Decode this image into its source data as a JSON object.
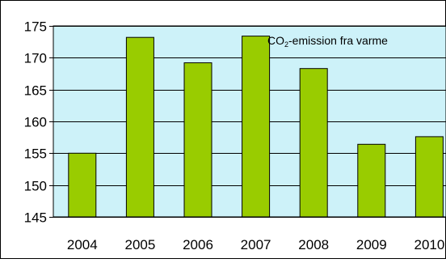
{
  "chart_data": {
    "type": "bar",
    "categories": [
      "2004",
      "2005",
      "2006",
      "2007",
      "2008",
      "2009",
      "2010"
    ],
    "series": [
      {
        "name": "",
        "values": [
          155.0,
          173.2,
          169.2,
          173.4,
          168.3,
          156.4,
          157.6
        ]
      }
    ],
    "legend": {
      "text_main": "CO",
      "text_sub": "2",
      "text_rest": "-emission fra varme",
      "position": "top-right"
    },
    "title": "",
    "xlabel": "",
    "ylabel": "",
    "ylim": [
      145,
      175
    ],
    "yticks": [
      145,
      150,
      155,
      160,
      165,
      170,
      175
    ],
    "grid": true,
    "colors": {
      "plot_background": "#cdf2f9",
      "bar_fill": "#99cc00",
      "bar_stroke": "#000000",
      "grid": "#000000",
      "frame": "#000000"
    }
  }
}
